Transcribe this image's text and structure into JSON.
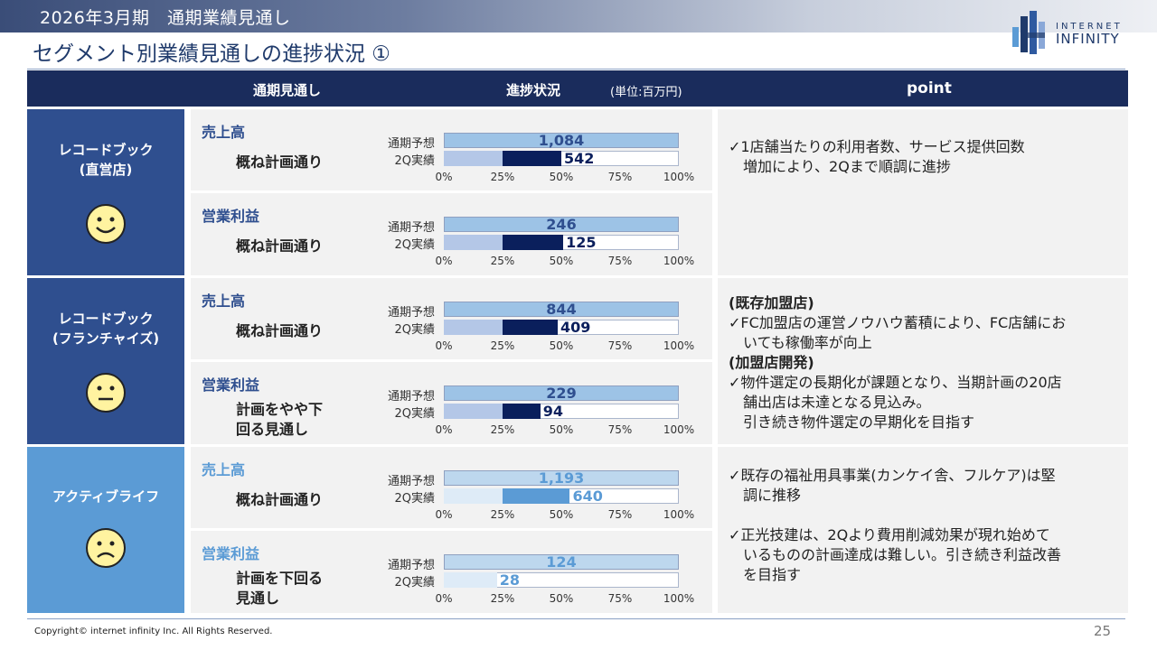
{
  "header": {
    "band_title": "2026年3月期　通期業績見通し",
    "page_title": "セグメント別業績見通しの進捗状況 ①",
    "logo_line1": "INTERNET",
    "logo_line2": "INFINITY"
  },
  "table_header": {
    "col_outlook": "通期見通し",
    "col_progress": "進捗状況",
    "unit": "(単位:百万円)",
    "col_point": "point"
  },
  "bar_labels": {
    "forecast": "通期予想",
    "actual": "2Q実績"
  },
  "ticks": [
    "0%",
    "25%",
    "50%",
    "75%",
    "100%"
  ],
  "colors": {
    "navy": "#1a2c5c",
    "seg1": "#2f4f8f",
    "seg2": "#2f4f8f",
    "seg3": "#5b9bd5",
    "forecast_bar": "#9dc3e6",
    "actual_dark": "#0a1f5c",
    "actual_light": "#5b9bd5"
  },
  "segments": [
    {
      "name": "レコードブック\n(直営店)",
      "face": "smile-face-icon",
      "metrics": [
        {
          "label": "売上高",
          "status": "概ね計画通り",
          "forecast": 1084,
          "actual": 542,
          "forecast_text": "1,084",
          "actual_text": "542"
        },
        {
          "label": "営業利益",
          "status": "概ね計画通り",
          "forecast": 246,
          "actual": 125,
          "forecast_text": "246",
          "actual_text": "125"
        }
      ],
      "points": [
        "✓1店舗当たりの利用者数、サービス提供回数",
        "　増加により、2Qまで順調に進捗"
      ]
    },
    {
      "name": "レコードブック\n(フランチャイズ)",
      "face": "neutral-face-icon",
      "metrics": [
        {
          "label": "売上高",
          "status": "概ね計画通り",
          "forecast": 844,
          "actual": 409,
          "forecast_text": "844",
          "actual_text": "409"
        },
        {
          "label": "営業利益",
          "status": "計画をやや下\n回る見通し",
          "forecast": 229,
          "actual": 94,
          "forecast_text": "229",
          "actual_text": "94"
        }
      ],
      "points": [
        "(既存加盟店)",
        "✓FC加盟店の運営ノウハウ蓄積により、FC店舗にお",
        "　いても稼働率が向上",
        "(加盟店開発)",
        "✓物件選定の長期化が課題となり、当期計画の20店",
        "　舗出店は未達となる見込み。",
        "　引き続き物件選定の早期化を目指す"
      ]
    },
    {
      "name": "アクティブライフ",
      "face": "sad-face-icon",
      "metrics": [
        {
          "label": "売上高",
          "status": "概ね計画通り",
          "forecast": 1193,
          "actual": 640,
          "forecast_text": "1,193",
          "actual_text": "640"
        },
        {
          "label": "営業利益",
          "status": "計画を下回る\n見通し",
          "forecast": 124,
          "actual": 28,
          "forecast_text": "124",
          "actual_text": "28"
        }
      ],
      "points": [
        "✓既存の福祉用具事業(カンケイ舎、フルケア)は堅",
        "　調に推移",
        "",
        "✓正光技建は、2Qより費用削減効果が現れ始めて",
        "　いるものの計画達成は難しい。引き続き利益改善",
        "　を目指す"
      ]
    }
  ],
  "footer": {
    "copyright": "Copyright© internet infinity Inc. All Rights Reserved.",
    "page_number": "25"
  }
}
